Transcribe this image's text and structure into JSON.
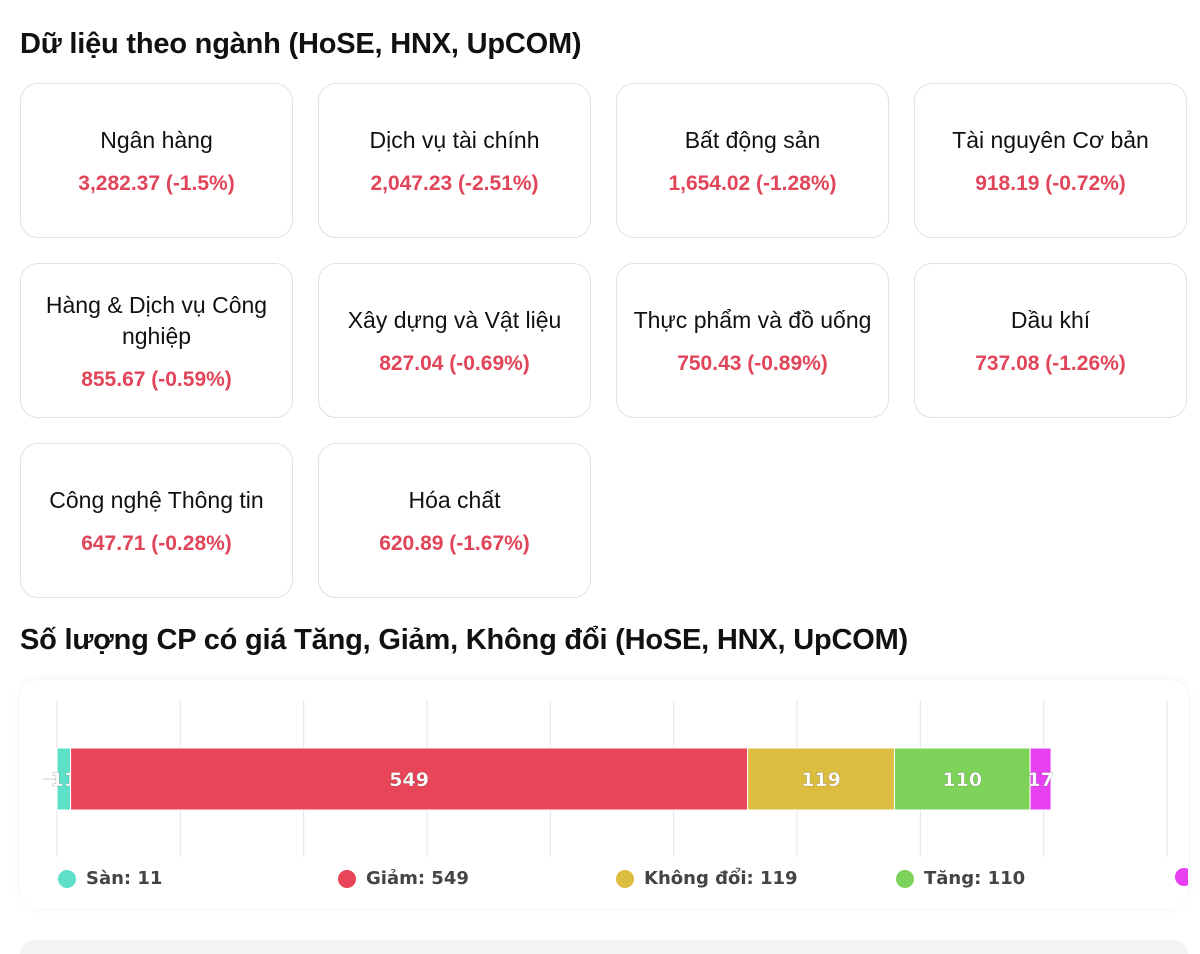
{
  "sector_section": {
    "title": "Dữ liệu theo ngành (HoSE, HNX, UpCOM)",
    "cards": [
      {
        "name": "Ngân hàng",
        "value": "3,282.37 (-1.5%)"
      },
      {
        "name": "Dịch vụ tài chính",
        "value": "2,047.23 (-2.51%)"
      },
      {
        "name": "Bất động sản",
        "value": "1,654.02 (-1.28%)"
      },
      {
        "name": "Tài nguyên Cơ bản",
        "value": "918.19 (-0.72%)"
      },
      {
        "name": "Hàng & Dịch vụ Công nghiệp",
        "value": "855.67 (-0.59%)"
      },
      {
        "name": "Xây dựng và Vật liệu",
        "value": "827.04 (-0.69%)"
      },
      {
        "name": "Thực phẩm và đồ uống",
        "value": "750.43 (-0.89%)"
      },
      {
        "name": "Dầu khí",
        "value": "737.08 (-1.26%)"
      },
      {
        "name": "Công nghệ Thông tin",
        "value": "647.71 (-0.28%)"
      },
      {
        "name": "Hóa chất",
        "value": "620.89 (-1.67%)"
      }
    ],
    "value_color": "#e0455a"
  },
  "breadth_section": {
    "title": "Số lượng CP có giá Tăng, Giảm, Không đổi (HoSE, HNX, UpCOM)",
    "legend": [
      {
        "label": "Sàn: 11",
        "color": "#5ee0c8"
      },
      {
        "label": "Giảm: 549",
        "color": "#e84558"
      },
      {
        "label": "Không đổi: 119",
        "color": "#dcbd3f"
      },
      {
        "label": "Tăng: 110",
        "color": "#7dd35a"
      },
      {
        "label": "",
        "color": "#e640f0"
      }
    ]
  },
  "chart_data": {
    "type": "bar",
    "orientation": "horizontal",
    "stacked": true,
    "series": [
      {
        "name": "Sàn",
        "values": [
          11
        ],
        "color": "#5ee0c8",
        "label": "11"
      },
      {
        "name": "Giảm",
        "values": [
          549
        ],
        "color": "#e84558",
        "label": "549"
      },
      {
        "name": "Không đổi",
        "values": [
          119
        ],
        "color": "#dcbd3f",
        "label": "119"
      },
      {
        "name": "Tăng",
        "values": [
          110
        ],
        "color": "#7dd35a",
        "label": "110"
      },
      {
        "name": "",
        "values": [
          17
        ],
        "color": "#e640f0",
        "label": "17"
      }
    ],
    "xlim": [
      0,
      900
    ],
    "grid": true,
    "legend": "bottom"
  }
}
